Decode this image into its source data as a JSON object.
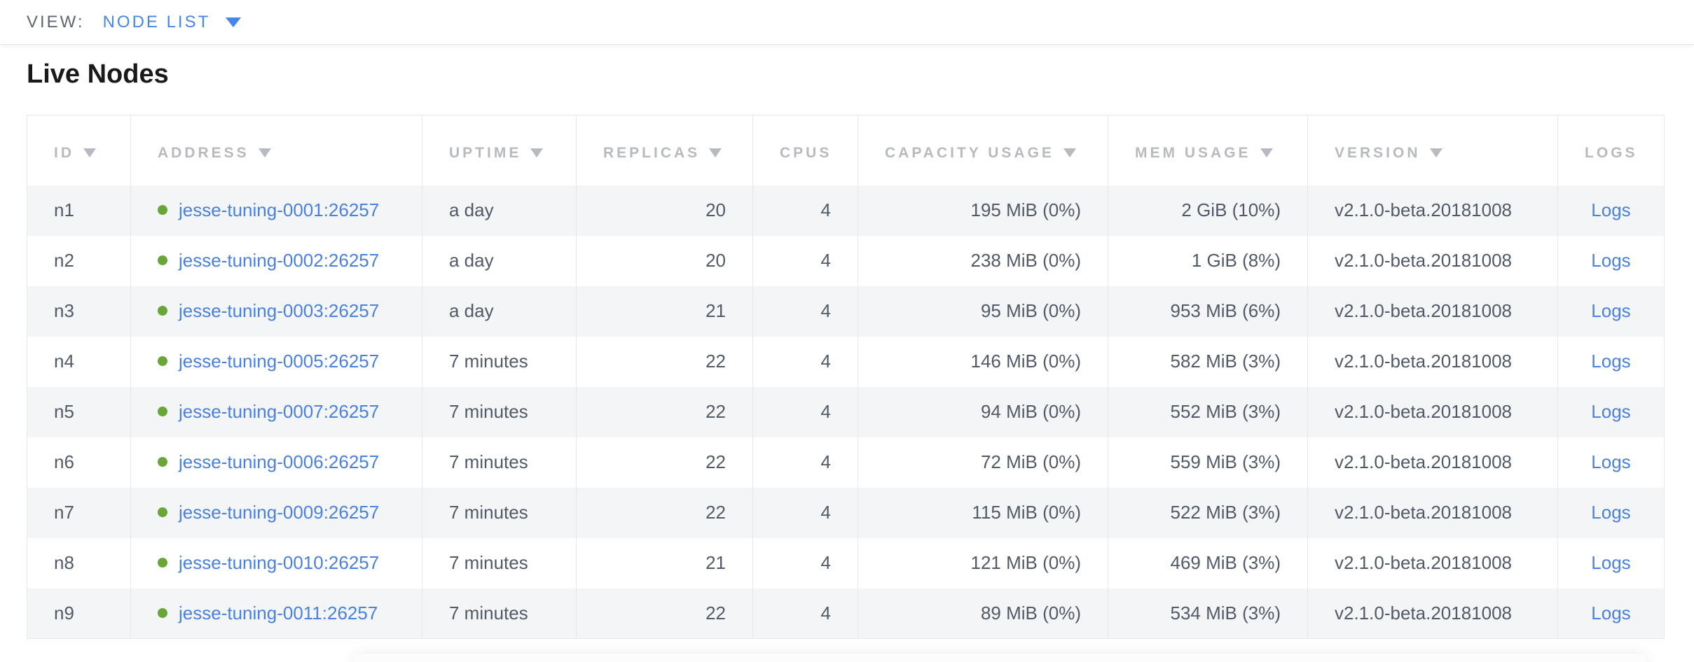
{
  "view_bar": {
    "label": "VIEW:",
    "selected": "NODE LIST"
  },
  "page": {
    "title": "Live Nodes"
  },
  "table": {
    "columns": [
      {
        "key": "id",
        "label": "ID",
        "sortable": true,
        "align": "left"
      },
      {
        "key": "address",
        "label": "ADDRESS",
        "sortable": true,
        "align": "left"
      },
      {
        "key": "uptime",
        "label": "UPTIME",
        "sortable": true,
        "align": "left"
      },
      {
        "key": "replicas",
        "label": "REPLICAS",
        "sortable": true,
        "align": "right"
      },
      {
        "key": "cpus",
        "label": "CPUS",
        "sortable": false,
        "align": "right"
      },
      {
        "key": "capacity_usage",
        "label": "CAPACITY USAGE",
        "sortable": true,
        "align": "right"
      },
      {
        "key": "mem_usage",
        "label": "MEM USAGE",
        "sortable": true,
        "align": "right"
      },
      {
        "key": "version",
        "label": "VERSION",
        "sortable": true,
        "align": "left"
      },
      {
        "key": "logs",
        "label": "LOGS",
        "sortable": false,
        "align": "center"
      }
    ],
    "rows": [
      {
        "id": "n1",
        "address": "jesse-tuning-0001:26257",
        "uptime": "a day",
        "replicas": "20",
        "cpus": "4",
        "capacity_usage": "195 MiB (0%)",
        "mem_usage": "2 GiB (10%)",
        "version": "v2.1.0-beta.20181008",
        "logs": "Logs"
      },
      {
        "id": "n2",
        "address": "jesse-tuning-0002:26257",
        "uptime": "a day",
        "replicas": "20",
        "cpus": "4",
        "capacity_usage": "238 MiB (0%)",
        "mem_usage": "1 GiB (8%)",
        "version": "v2.1.0-beta.20181008",
        "logs": "Logs"
      },
      {
        "id": "n3",
        "address": "jesse-tuning-0003:26257",
        "uptime": "a day",
        "replicas": "21",
        "cpus": "4",
        "capacity_usage": "95 MiB (0%)",
        "mem_usage": "953 MiB (6%)",
        "version": "v2.1.0-beta.20181008",
        "logs": "Logs"
      },
      {
        "id": "n4",
        "address": "jesse-tuning-0005:26257",
        "uptime": "7 minutes",
        "replicas": "22",
        "cpus": "4",
        "capacity_usage": "146 MiB (0%)",
        "mem_usage": "582 MiB (3%)",
        "version": "v2.1.0-beta.20181008",
        "logs": "Logs"
      },
      {
        "id": "n5",
        "address": "jesse-tuning-0007:26257",
        "uptime": "7 minutes",
        "replicas": "22",
        "cpus": "4",
        "capacity_usage": "94 MiB (0%)",
        "mem_usage": "552 MiB (3%)",
        "version": "v2.1.0-beta.20181008",
        "logs": "Logs"
      },
      {
        "id": "n6",
        "address": "jesse-tuning-0006:26257",
        "uptime": "7 minutes",
        "replicas": "22",
        "cpus": "4",
        "capacity_usage": "72 MiB (0%)",
        "mem_usage": "559 MiB (3%)",
        "version": "v2.1.0-beta.20181008",
        "logs": "Logs"
      },
      {
        "id": "n7",
        "address": "jesse-tuning-0009:26257",
        "uptime": "7 minutes",
        "replicas": "22",
        "cpus": "4",
        "capacity_usage": "115 MiB (0%)",
        "mem_usage": "522 MiB (3%)",
        "version": "v2.1.0-beta.20181008",
        "logs": "Logs"
      },
      {
        "id": "n8",
        "address": "jesse-tuning-0010:26257",
        "uptime": "7 minutes",
        "replicas": "21",
        "cpus": "4",
        "capacity_usage": "121 MiB (0%)",
        "mem_usage": "469 MiB (3%)",
        "version": "v2.1.0-beta.20181008",
        "logs": "Logs"
      },
      {
        "id": "n9",
        "address": "jesse-tuning-0011:26257",
        "uptime": "7 minutes",
        "replicas": "22",
        "cpus": "4",
        "capacity_usage": "89 MiB (0%)",
        "mem_usage": "534 MiB (3%)",
        "version": "v2.1.0-beta.20181008",
        "logs": "Logs"
      }
    ]
  },
  "icons": {
    "dropdown_caret": "▼",
    "sort_desc": "▼",
    "node_live_status": "●"
  },
  "colors": {
    "view_label": "#5f6670",
    "view_value": "#4787e7",
    "title": "#1a1a1a",
    "border": "#e7e8e9",
    "header_text": "#b7babf",
    "body_text": "#525a68",
    "link": "#4a81e0",
    "node_dot": "#6aa537",
    "row_stripe": "#f4f5f6"
  }
}
